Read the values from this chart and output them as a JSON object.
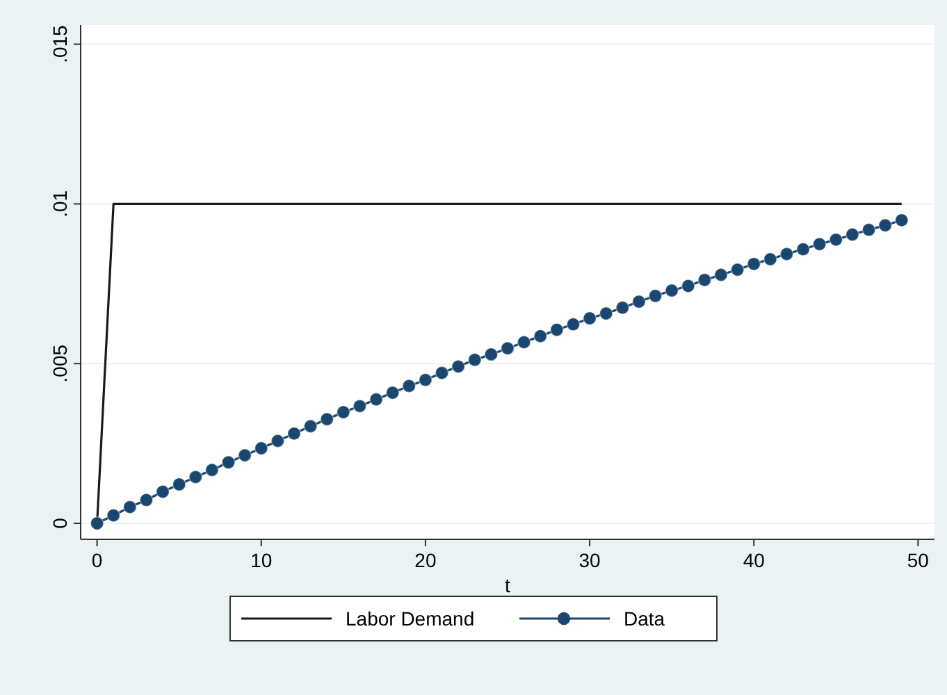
{
  "chart_data": {
    "type": "line",
    "xlabel": "t",
    "x": [
      0,
      1,
      2,
      3,
      4,
      5,
      6,
      7,
      8,
      9,
      10,
      11,
      12,
      13,
      14,
      15,
      16,
      17,
      18,
      19,
      20,
      21,
      22,
      23,
      24,
      25,
      26,
      27,
      28,
      29,
      30,
      31,
      32,
      33,
      34,
      35,
      36,
      37,
      38,
      39,
      40,
      41,
      42,
      43,
      44,
      45,
      46,
      47,
      48,
      49
    ],
    "series": [
      {
        "name": "Labor Demand",
        "color": "#1a1a1a",
        "marker": "none",
        "values": [
          0,
          0.01,
          0.01,
          0.01,
          0.01,
          0.01,
          0.01,
          0.01,
          0.01,
          0.01,
          0.01,
          0.01,
          0.01,
          0.01,
          0.01,
          0.01,
          0.01,
          0.01,
          0.01,
          0.01,
          0.01,
          0.01,
          0.01,
          0.01,
          0.01,
          0.01,
          0.01,
          0.01,
          0.01,
          0.01,
          0.01,
          0.01,
          0.01,
          0.01,
          0.01,
          0.01,
          0.01,
          0.01,
          0.01,
          0.01,
          0.01,
          0.01,
          0.01,
          0.01,
          0.01,
          0.01,
          0.01,
          0.01,
          0.01,
          0.01
        ]
      },
      {
        "name": "Data",
        "color": "#1a476f",
        "marker": "circle",
        "values": [
          0,
          0.00025,
          0.00051,
          0.00073,
          0.00099,
          0.00122,
          0.00145,
          0.00167,
          0.00191,
          0.00213,
          0.00235,
          0.00258,
          0.00281,
          0.00304,
          0.00326,
          0.00348,
          0.00367,
          0.00388,
          0.00409,
          0.0043,
          0.00449,
          0.00471,
          0.00491,
          0.00512,
          0.00529,
          0.00548,
          0.00567,
          0.00586,
          0.00606,
          0.00623,
          0.00642,
          0.00657,
          0.00675,
          0.00694,
          0.00712,
          0.00729,
          0.00743,
          0.00762,
          0.00778,
          0.00794,
          0.00812,
          0.00827,
          0.00843,
          0.00858,
          0.00874,
          0.00888,
          0.00904,
          0.00919,
          0.00933,
          0.00949
        ]
      }
    ],
    "xlim": [
      -1,
      51
    ],
    "xticks": [
      0,
      10,
      20,
      30,
      40,
      50
    ],
    "ylim": [
      -0.0005,
      0.0156
    ],
    "yticks": [
      {
        "value": 0,
        "label": "0"
      },
      {
        "value": 0.005,
        "label": ".005"
      },
      {
        "value": 0.01,
        "label": ".01"
      },
      {
        "value": 0.015,
        "label": ".015"
      }
    ],
    "grid": "y",
    "legend": "bottom"
  }
}
